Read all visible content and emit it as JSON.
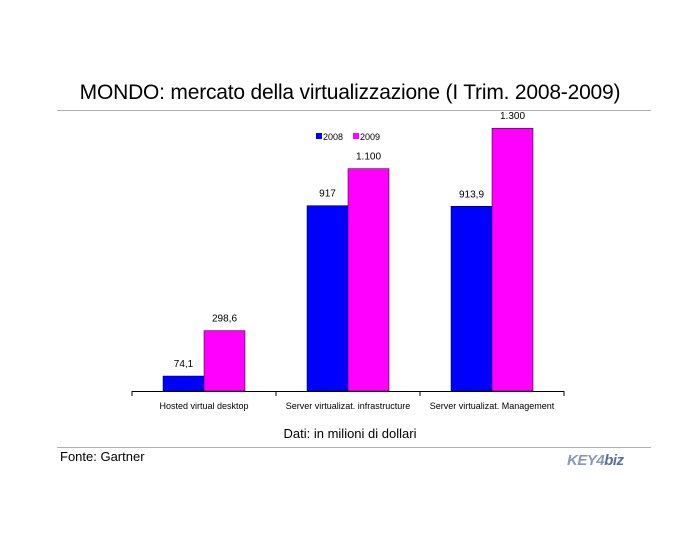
{
  "title": "MONDO: mercato della virtualizzazione (I Trim. 2008-2009)",
  "note": "Dati: in milioni di dollari",
  "source": "Fonte: Gartner",
  "logo": {
    "part1": "KEY4",
    "part2": "biz"
  },
  "chart_data": {
    "type": "bar",
    "categories": [
      "Hosted virtual desktop",
      "Server virtualizat. infrastructure",
      "Server virtualizat. Management"
    ],
    "series": [
      {
        "name": "2008",
        "color": "#0000ff",
        "values": [
          74.1,
          917,
          913.9
        ],
        "labels": [
          "74,1",
          "917",
          "913,9"
        ]
      },
      {
        "name": "2009",
        "color": "#ff00ff",
        "values": [
          298.6,
          1100,
          1300
        ],
        "labels": [
          "298,6",
          "1.100",
          "1.300"
        ]
      }
    ],
    "ylim": [
      0,
      1400
    ],
    "grid": false,
    "legend": "top-center"
  }
}
